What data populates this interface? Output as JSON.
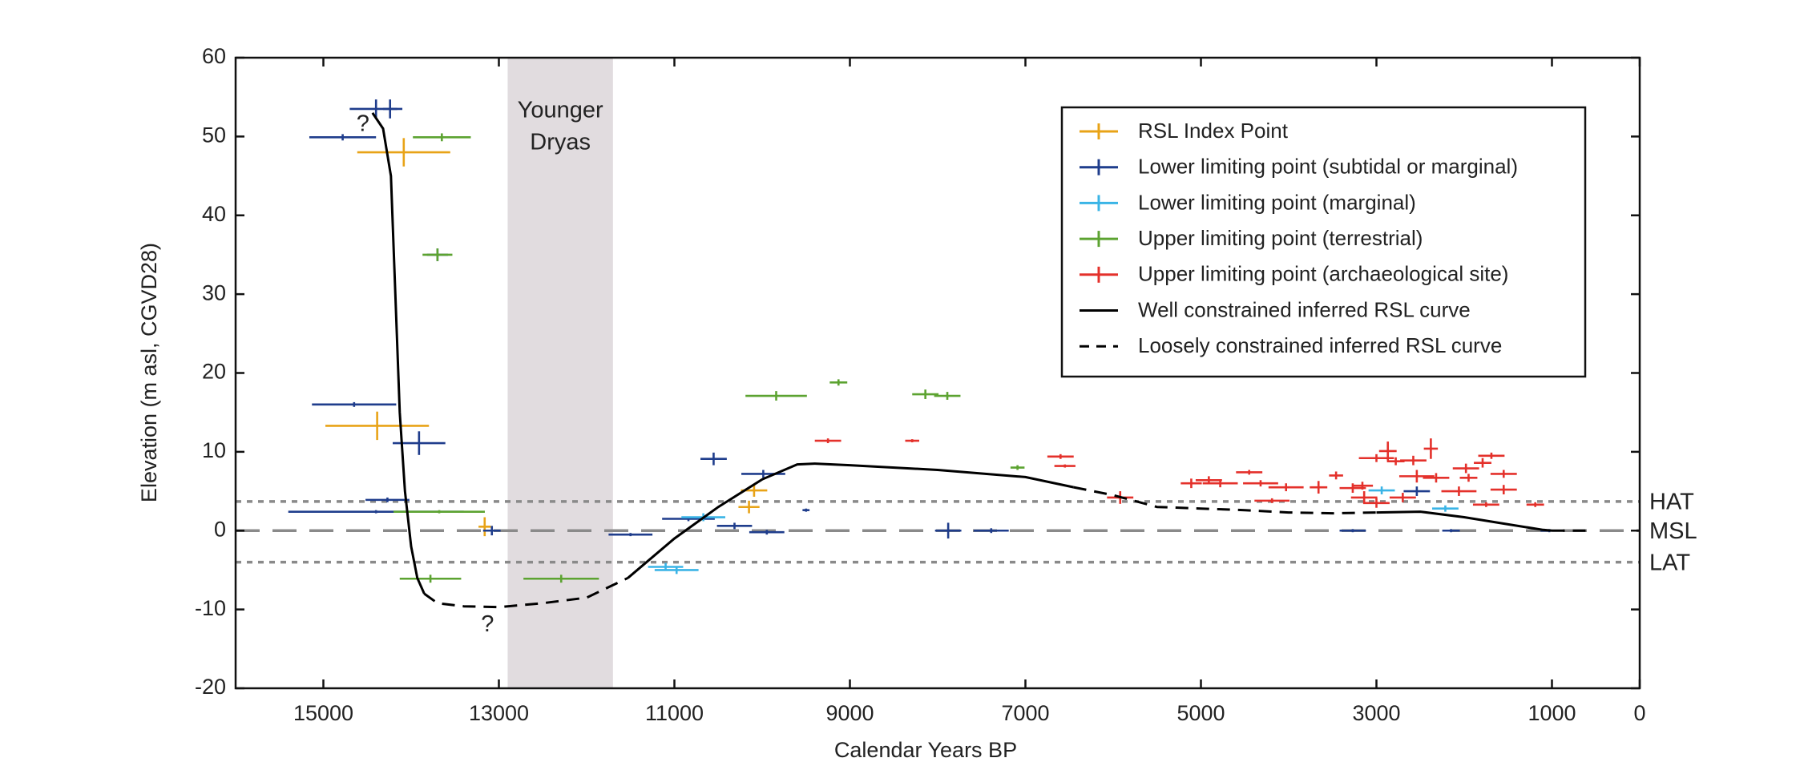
{
  "chart_data": {
    "type": "errorbar",
    "xlabel": "Calendar Years BP",
    "ylabel": "Elevation (m asl, CGVD28)",
    "xlim": [
      16000,
      0
    ],
    "ylim": [
      -20,
      60
    ],
    "xticks": [
      15000,
      13000,
      11000,
      9000,
      7000,
      5000,
      3000,
      1000,
      0
    ],
    "yticks": [
      -20,
      -10,
      0,
      10,
      20,
      30,
      40,
      50,
      60
    ],
    "legend": "upper right",
    "shaded_region": {
      "label": [
        "Younger",
        "Dryas"
      ],
      "xrange": [
        12900,
        11700
      ],
      "color": "#e1dcdf"
    },
    "reference_lines": [
      {
        "label": "HAT",
        "value": 3.7,
        "style": "dotted",
        "color": "#8a8a8a"
      },
      {
        "label": "MSL",
        "value": 0,
        "style": "dashed",
        "color": "#8a8a8a"
      },
      {
        "label": "LAT",
        "value": -4,
        "style": "dotted",
        "color": "#8a8a8a"
      }
    ],
    "annotations": [
      {
        "text": "?",
        "x": 14550,
        "y": 51.5
      },
      {
        "text": "?",
        "x": 13130,
        "y": -12
      }
    ],
    "series": [
      {
        "name": "RSL Index Point",
        "style": "cross",
        "color": "#e8a317",
        "x": [
          14084,
          14387,
          13162,
          10092,
          10150
        ],
        "values": [
          48,
          13.3,
          0.5,
          5.1,
          3.0
        ],
        "xerr": [
          530,
          590,
          70,
          150,
          120
        ],
        "yerr": [
          1.8,
          1.8,
          1.2,
          0.8,
          0.8
        ]
      },
      {
        "name": "Lower limiting point (subtidal or marginal)",
        "style": "cross",
        "color": "#1f3d8c",
        "x": [
          14400,
          14240,
          14780,
          13700,
          14650,
          13910,
          14270,
          14400,
          13080,
          11500,
          10840,
          10553,
          9987,
          10315,
          9947,
          9500,
          7880,
          7390,
          3270,
          2150,
          1030,
          2540
        ],
        "values": [
          53.5,
          53.5,
          49.9,
          35,
          16,
          11.1,
          3.9,
          2.4,
          0,
          -0.5,
          1.5,
          9.1,
          7.2,
          0.6,
          -0.2,
          2.6,
          0,
          0,
          0,
          0,
          0,
          5
        ],
        "xerr": [
          300,
          80,
          380,
          120,
          480,
          300,
          250,
          1000,
          100,
          250,
          300,
          150,
          250,
          200,
          200,
          40,
          150,
          200,
          150,
          100,
          100,
          150
        ],
        "yerr": [
          1.2,
          1.2,
          0.4,
          0.8,
          0.3,
          1.5,
          0.3,
          0.2,
          0.6,
          0.2,
          0.3,
          0.8,
          0.5,
          0.4,
          0.3,
          0.2,
          1,
          0.3,
          0.2,
          0.2,
          0.2,
          0.6
        ]
      },
      {
        "name": "Lower limiting point (marginal)",
        "style": "cross",
        "color": "#3ab4e6",
        "x": [
          10975,
          11100,
          10670,
          2940,
          2215
        ],
        "values": [
          -5,
          -4.6,
          1.7,
          5.1,
          2.8
        ],
        "xerr": [
          250,
          200,
          250,
          150,
          150
        ],
        "yerr": [
          0.5,
          0.5,
          0.5,
          0.5,
          0.4
        ]
      },
      {
        "name": "Upper limiting point (terrestrial)",
        "style": "cross",
        "color": "#5ca331",
        "x": [
          13650,
          13700,
          13780,
          12290,
          9840,
          9130,
          8140,
          7890,
          7090,
          13680
        ],
        "values": [
          49.9,
          35,
          -6.1,
          -6.1,
          17.1,
          18.8,
          17.3,
          17.1,
          8,
          2.4
        ],
        "xerr": [
          330,
          170,
          350,
          430,
          350,
          100,
          150,
          150,
          80,
          520
        ],
        "yerr": [
          0.5,
          0.8,
          0.5,
          0.5,
          0.6,
          0.4,
          0.6,
          0.5,
          0.3,
          0.2
        ]
      },
      {
        "name": "Upper limiting point (archaeological site)",
        "style": "cross",
        "color": "#e4312b",
        "x": [
          9250,
          8290,
          6600,
          6550,
          5920,
          4780,
          4450,
          4320,
          4030,
          3660,
          3460,
          3270,
          3140,
          3000,
          2870,
          2700,
          2780,
          2580,
          2380,
          2540,
          2320,
          2060,
          1950,
          1980,
          1790,
          1690,
          1550,
          1750,
          1550,
          1190,
          3160,
          5110,
          4910,
          4190,
          3000
        ],
        "values": [
          11.4,
          11.4,
          9.4,
          8.2,
          4.2,
          6,
          7.4,
          6,
          5.5,
          5.5,
          7,
          5.4,
          4.2,
          9.2,
          10.1,
          4.2,
          8.8,
          8.9,
          10.4,
          6.9,
          6.7,
          5,
          6.7,
          7.9,
          8.6,
          9.5,
          7.2,
          3.3,
          5.2,
          3.3,
          5.7,
          6,
          6.4,
          3.8,
          3.5
        ],
        "xerr": [
          150,
          80,
          150,
          120,
          150,
          200,
          150,
          200,
          200,
          100,
          80,
          150,
          150,
          200,
          100,
          150,
          100,
          150,
          80,
          200,
          150,
          200,
          100,
          150,
          100,
          150,
          150,
          150,
          150,
          100,
          120,
          120,
          150,
          200,
          150
        ],
        "yerr": [
          0.3,
          0.2,
          0.3,
          0.2,
          0.8,
          0.5,
          0.3,
          0.4,
          0.5,
          0.8,
          0.5,
          0.6,
          0.8,
          0.5,
          1.2,
          0.6,
          0.5,
          0.6,
          1.3,
          0.8,
          0.6,
          0.6,
          0.5,
          0.6,
          0.6,
          0.4,
          0.5,
          0.3,
          0.6,
          0.3,
          0.5,
          0.6,
          0.5,
          0.3,
          0.6
        ]
      },
      {
        "name": "Well constrained inferred RSL curve",
        "style": "solid",
        "color": "#000000",
        "x": [
          14440,
          14320,
          14230,
          14180,
          14130,
          14070,
          14000,
          13930,
          13850,
          null,
          11530,
          11000,
          10500,
          10000,
          9600,
          9400,
          9000,
          8000,
          7000,
          6450,
          null,
          3000,
          2500,
          2000,
          1500,
          1100,
          1000
        ],
        "values": [
          53,
          51,
          45,
          30,
          15,
          5,
          -2,
          -6,
          -8,
          null,
          -6,
          -1,
          3,
          6.5,
          8.4,
          8.5,
          8.3,
          7.7,
          6.8,
          5.5,
          null,
          2.3,
          2.4,
          1.7,
          0.8,
          0.1,
          0
        ]
      },
      {
        "name": "Loosely constrained inferred RSL curve",
        "style": "dashed",
        "color": "#000000",
        "x": [
          13850,
          13700,
          13400,
          13000,
          12500,
          12000,
          11530,
          null,
          6450,
          6000,
          5500,
          5000,
          4500,
          4000,
          3500,
          3000,
          null,
          1000,
          600
        ],
        "values": [
          -8,
          -9.2,
          -9.6,
          -9.7,
          -9.2,
          -8.5,
          -6,
          null,
          5.5,
          4.5,
          3,
          2.8,
          2.6,
          2.3,
          2.2,
          2.3,
          null,
          0,
          0
        ]
      }
    ]
  }
}
